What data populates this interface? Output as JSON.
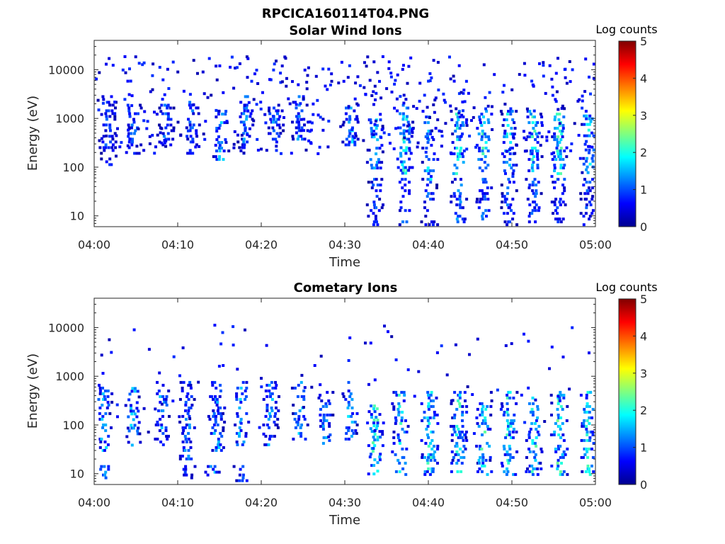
{
  "figure_title": "RPCICA160114T04.PNG",
  "chart_data": [
    {
      "type": "heatmap",
      "title": "Solar Wind Ions",
      "xlabel": "Time",
      "ylabel": "Energy (eV)",
      "x_tick_labels": [
        "04:00",
        "04:10",
        "04:20",
        "04:30",
        "04:40",
        "04:50",
        "05:00"
      ],
      "x_range_minutes": [
        0,
        60
      ],
      "y_scale": "log",
      "y_range": [
        6,
        40000
      ],
      "y_tick_values": [
        10,
        100,
        1000,
        10000
      ],
      "y_tick_labels": [
        "10",
        "100",
        "1000",
        "10000"
      ],
      "colorbar": {
        "title": "Log counts",
        "range": [
          0,
          5
        ],
        "tick_labels": [
          "0",
          "1",
          "2",
          "3",
          "4",
          "5"
        ],
        "colormap": "jet"
      },
      "bursts": [
        {
          "t": 1.5,
          "e": [
            120,
            3000
          ],
          "c": 1.2
        },
        {
          "t": 4.5,
          "e": [
            200,
            2000
          ],
          "c": 1.5
        },
        {
          "t": 8.5,
          "e": [
            300,
            2000
          ],
          "c": 1.3
        },
        {
          "t": 11.5,
          "e": [
            200,
            3000
          ],
          "c": 1.3
        },
        {
          "t": 15.0,
          "e": [
            150,
            1500
          ],
          "c": 1.8
        },
        {
          "t": 18.0,
          "e": [
            200,
            3000
          ],
          "c": 1.6
        },
        {
          "t": 21.5,
          "e": [
            300,
            2000
          ],
          "c": 1.5
        },
        {
          "t": 24.5,
          "e": [
            400,
            3000
          ],
          "c": 1.6
        },
        {
          "t": 30.5,
          "e": [
            300,
            2000
          ],
          "c": 1.9
        },
        {
          "t": 33.5,
          "e": [
            100,
            1000
          ],
          "c": 2.2
        },
        {
          "t": 37.0,
          "e": [
            80,
            2000
          ],
          "c": 2.4
        },
        {
          "t": 40.0,
          "e": [
            60,
            1500
          ],
          "c": 2.0
        },
        {
          "t": 43.5,
          "e": [
            70,
            1500
          ],
          "c": 2.3
        },
        {
          "t": 46.5,
          "e": [
            80,
            1500
          ],
          "c": 2.4
        },
        {
          "t": 49.5,
          "e": [
            60,
            1500
          ],
          "c": 2.1
        },
        {
          "t": 52.5,
          "e": [
            80,
            1500
          ],
          "c": 2.3
        },
        {
          "t": 55.5,
          "e": [
            60,
            1500
          ],
          "c": 2.4
        },
        {
          "t": 59.0,
          "e": [
            80,
            1200
          ],
          "c": 2.1
        }
      ],
      "low_energy_streaks": [
        {
          "t": 33.5,
          "e": [
            7,
            60
          ],
          "c": 1.2
        },
        {
          "t": 37.0,
          "e": [
            7,
            60
          ],
          "c": 1.3
        },
        {
          "t": 40.0,
          "e": [
            7,
            60
          ],
          "c": 1.3
        },
        {
          "t": 43.5,
          "e": [
            8,
            60
          ],
          "c": 1.5
        },
        {
          "t": 46.5,
          "e": [
            8,
            60
          ],
          "c": 1.4
        },
        {
          "t": 49.5,
          "e": [
            6,
            60
          ],
          "c": 1.3
        },
        {
          "t": 52.5,
          "e": [
            8,
            60
          ],
          "c": 1.3
        },
        {
          "t": 55.5,
          "e": [
            8,
            60
          ],
          "c": 1.2
        },
        {
          "t": 59.0,
          "e": [
            7,
            60
          ],
          "c": 1.2
        }
      ]
    },
    {
      "type": "heatmap",
      "title": "Cometary Ions",
      "xlabel": "Time",
      "ylabel": "Energy (eV)",
      "x_tick_labels": [
        "04:00",
        "04:10",
        "04:20",
        "04:30",
        "04:40",
        "04:50",
        "05:00"
      ],
      "x_range_minutes": [
        0,
        60
      ],
      "y_scale": "log",
      "y_range": [
        6,
        40000
      ],
      "y_tick_values": [
        10,
        100,
        1000,
        10000
      ],
      "y_tick_labels": [
        "10",
        "100",
        "1000",
        "10000"
      ],
      "colorbar": {
        "title": "Log counts",
        "range": [
          0,
          5
        ],
        "tick_labels": [
          "0",
          "1",
          "2",
          "3",
          "4",
          "5"
        ],
        "colormap": "jet"
      },
      "bursts": [
        {
          "t": 1.0,
          "e": [
            30,
            800
          ],
          "c": 1.8
        },
        {
          "t": 4.5,
          "e": [
            40,
            600
          ],
          "c": 1.8
        },
        {
          "t": 8.0,
          "e": [
            40,
            800
          ],
          "c": 1.7
        },
        {
          "t": 11.0,
          "e": [
            20,
            800
          ],
          "c": 1.5
        },
        {
          "t": 14.5,
          "e": [
            30,
            800
          ],
          "c": 1.7
        },
        {
          "t": 17.5,
          "e": [
            40,
            800
          ],
          "c": 1.8
        },
        {
          "t": 21.0,
          "e": [
            40,
            800
          ],
          "c": 1.7
        },
        {
          "t": 24.5,
          "e": [
            50,
            800
          ],
          "c": 1.8
        },
        {
          "t": 27.5,
          "e": [
            40,
            500
          ],
          "c": 1.6
        },
        {
          "t": 30.5,
          "e": [
            50,
            800
          ],
          "c": 1.9
        },
        {
          "t": 33.5,
          "e": [
            10,
            300
          ],
          "c": 2.4
        },
        {
          "t": 36.5,
          "e": [
            10,
            500
          ],
          "c": 2.3
        },
        {
          "t": 40.0,
          "e": [
            10,
            500
          ],
          "c": 2.3
        },
        {
          "t": 43.5,
          "e": [
            10,
            500
          ],
          "c": 2.4
        },
        {
          "t": 46.5,
          "e": [
            10,
            500
          ],
          "c": 2.5
        },
        {
          "t": 49.5,
          "e": [
            10,
            500
          ],
          "c": 2.3
        },
        {
          "t": 52.5,
          "e": [
            10,
            500
          ],
          "c": 2.4
        },
        {
          "t": 55.5,
          "e": [
            10,
            500
          ],
          "c": 2.5
        },
        {
          "t": 59.0,
          "e": [
            10,
            500
          ],
          "c": 2.3
        }
      ],
      "low_energy_streaks": [
        {
          "t": 1.0,
          "e": [
            6,
            15
          ],
          "c": 1.6
        },
        {
          "t": 11.0,
          "e": [
            8,
            15
          ],
          "c": 1.2
        },
        {
          "t": 14.0,
          "e": [
            6,
            15
          ],
          "c": 1.8
        },
        {
          "t": 17.5,
          "e": [
            7,
            15
          ],
          "c": 1.1
        }
      ]
    }
  ]
}
